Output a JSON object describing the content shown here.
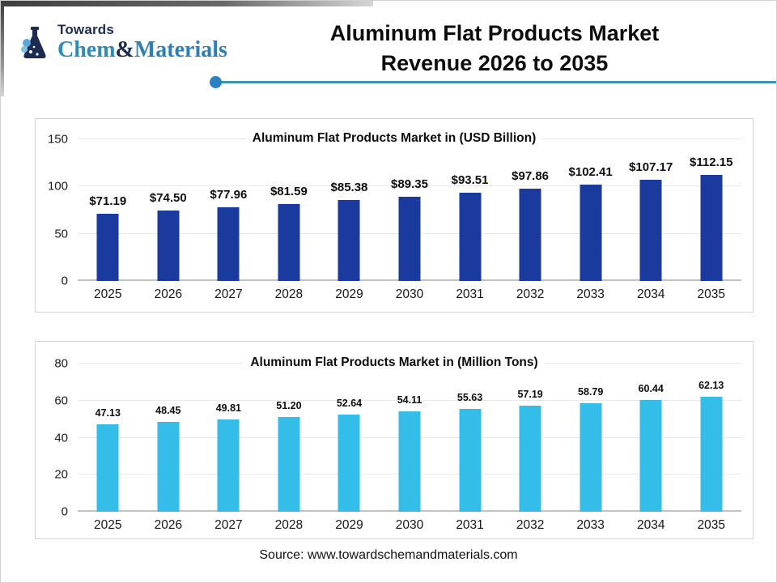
{
  "logo": {
    "towards": "Towards",
    "chem": "Chem",
    "amp": "&",
    "materials": "Materials"
  },
  "header": {
    "title_line1": "Aluminum Flat Products Market",
    "title_line2": "Revenue 2026 to 2035"
  },
  "source": "Source: www.towardschemandmaterials.com",
  "colors": {
    "navy_bar": "#1a3a9e",
    "sky_bar": "#35bde9",
    "divider_line": "#3e92b4",
    "divider_dot": "#2a80c4",
    "logo_navy": "#1d2b52",
    "logo_blue": "#2f8abc"
  },
  "chart_data": [
    {
      "type": "bar",
      "title": "Aluminum Flat Products Market in (USD Billion)",
      "categories": [
        "2025",
        "2026",
        "2027",
        "2028",
        "2029",
        "2030",
        "2031",
        "2032",
        "2033",
        "2034",
        "2035"
      ],
      "values": [
        71.19,
        74.5,
        77.96,
        81.59,
        85.38,
        89.35,
        93.51,
        97.86,
        102.41,
        107.17,
        112.15
      ],
      "bar_labels": [
        "$71.19",
        "$74.50",
        "$77.96",
        "$81.59",
        "$85.38",
        "$89.35",
        "$93.51",
        "$97.86",
        "$102.41",
        "$107.17",
        "$112.15"
      ],
      "xlabel": "",
      "ylabel": "",
      "ylim": [
        0,
        150
      ],
      "yticks": [
        0,
        50,
        100,
        150
      ],
      "bar_color": "#1a3a9e",
      "grid": true,
      "legend": "none"
    },
    {
      "type": "bar",
      "title": "Aluminum Flat Products Market in (Million Tons)",
      "categories": [
        "2025",
        "2026",
        "2027",
        "2028",
        "2029",
        "2030",
        "2031",
        "2032",
        "2033",
        "2034",
        "2035"
      ],
      "values": [
        47.13,
        48.45,
        49.81,
        51.2,
        52.64,
        54.11,
        55.63,
        57.19,
        58.79,
        60.44,
        62.13
      ],
      "bar_labels": [
        "47.13",
        "48.45",
        "49.81",
        "51.20",
        "52.64",
        "54.11",
        "55.63",
        "57.19",
        "58.79",
        "60.44",
        "62.13"
      ],
      "xlabel": "",
      "ylabel": "",
      "ylim": [
        0,
        80
      ],
      "yticks": [
        0,
        20,
        40,
        60,
        80
      ],
      "bar_color": "#35bde9",
      "grid": true,
      "legend": "none"
    }
  ]
}
